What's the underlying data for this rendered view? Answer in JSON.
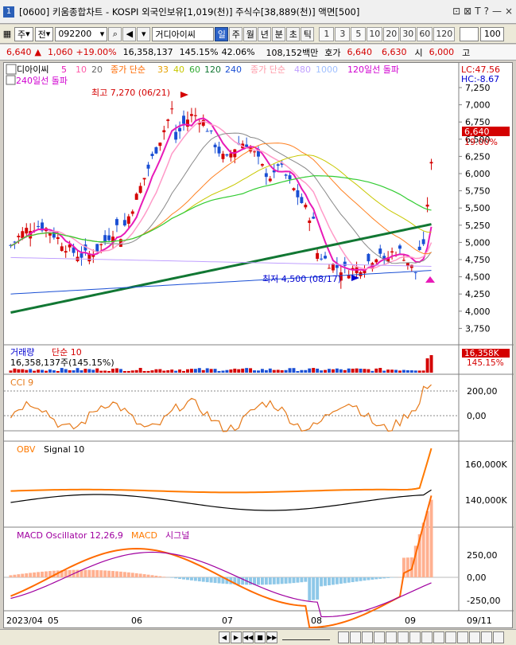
{
  "window": {
    "title": "[0600] 키움종합차트 - KOSPI 외국인보유[1,019(천)] 주식수[38,889(천)] 액면[500]",
    "icon_label": "1",
    "buttons": [
      "⊡",
      "⊠",
      "T",
      "?",
      "—",
      "×"
    ]
  },
  "toolbar": {
    "market_select": "주",
    "period_select": "전",
    "code_value": "092200",
    "stock_name": "디아이씨",
    "period_tabs": [
      "일",
      "주",
      "월",
      "년",
      "분",
      "초",
      "틱"
    ],
    "active_tab": "일",
    "minute_options": [
      "1",
      "3",
      "5",
      "10",
      "20",
      "30",
      "60",
      "120"
    ],
    "count_value": "100"
  },
  "price_line": {
    "price": "6,640",
    "change_arrow": "▲",
    "change": "1,060",
    "change_pct": "+19.00%",
    "volume": "16,358,137",
    "volume_ratio": "145.15%",
    "turnover": "42.06%",
    "amount": "108,152백만",
    "quote_label": "호가",
    "quote": "6,640",
    "ask": "6,630",
    "open_label": "시",
    "open": "6,000",
    "high_label": "고"
  },
  "main_chart": {
    "legend_name": "디아이씨",
    "legend_ma": [
      "5",
      "10",
      "20"
    ],
    "legend_close_label": "종가 단순",
    "legend_ma2": [
      "33",
      "40",
      "60",
      "120",
      "240"
    ],
    "legend_close_label2": "종가 단순",
    "legend_ma3": [
      "480",
      "1000"
    ],
    "legend_break": "120일선 돌파",
    "legend_break2": "240일선 돌파",
    "lc": "LC:47.56",
    "hc": "HC:-8.67",
    "high_annot": "최고 7,270 (06/21)",
    "low_annot": "최저 4,500 (08/17)",
    "price_tag": "6,640",
    "pct_tag": "19.00%",
    "y_labels": [
      "7,250",
      "7,000",
      "6,750",
      "6,500",
      "6,250",
      "6,000",
      "5,750",
      "5,500",
      "5,250",
      "5,000",
      "4,750",
      "4,500",
      "4,250",
      "4,000",
      "3,750"
    ]
  },
  "volume_panel": {
    "title": "거래량",
    "ma_label": "단순 10",
    "info": "16,358,137주(145.15%)",
    "tag": "16,358K",
    "tag_pct": "145.15%"
  },
  "cci_panel": {
    "title": "CCI 9",
    "y_labels": [
      "200,00",
      "0,00"
    ]
  },
  "obv_panel": {
    "title": "OBV",
    "signal": "Signal 10",
    "y_labels": [
      "160,000K",
      "140,000K"
    ]
  },
  "macd_panel": {
    "title": "MACD Oscillator 12,26,9",
    "macd_label": "MACD",
    "signal_label": "시그널",
    "y_labels": [
      "250,00",
      "0,00",
      "-250,00"
    ]
  },
  "x_axis": {
    "labels": [
      "2023/04",
      "05",
      "06",
      "07",
      "08",
      "09",
      "09/11"
    ]
  },
  "status_buttons": [
    "◀",
    "▶",
    "◀◀",
    "■",
    "▶▶"
  ],
  "colors": {
    "up": "#d40000",
    "down": "#0000d0",
    "ma5": "#e81ab8",
    "ma20": "#ff8020",
    "ma120": "#33aa33",
    "ma240": "#117733",
    "cci": "#e67a1a",
    "obv": "#ff7a00"
  }
}
